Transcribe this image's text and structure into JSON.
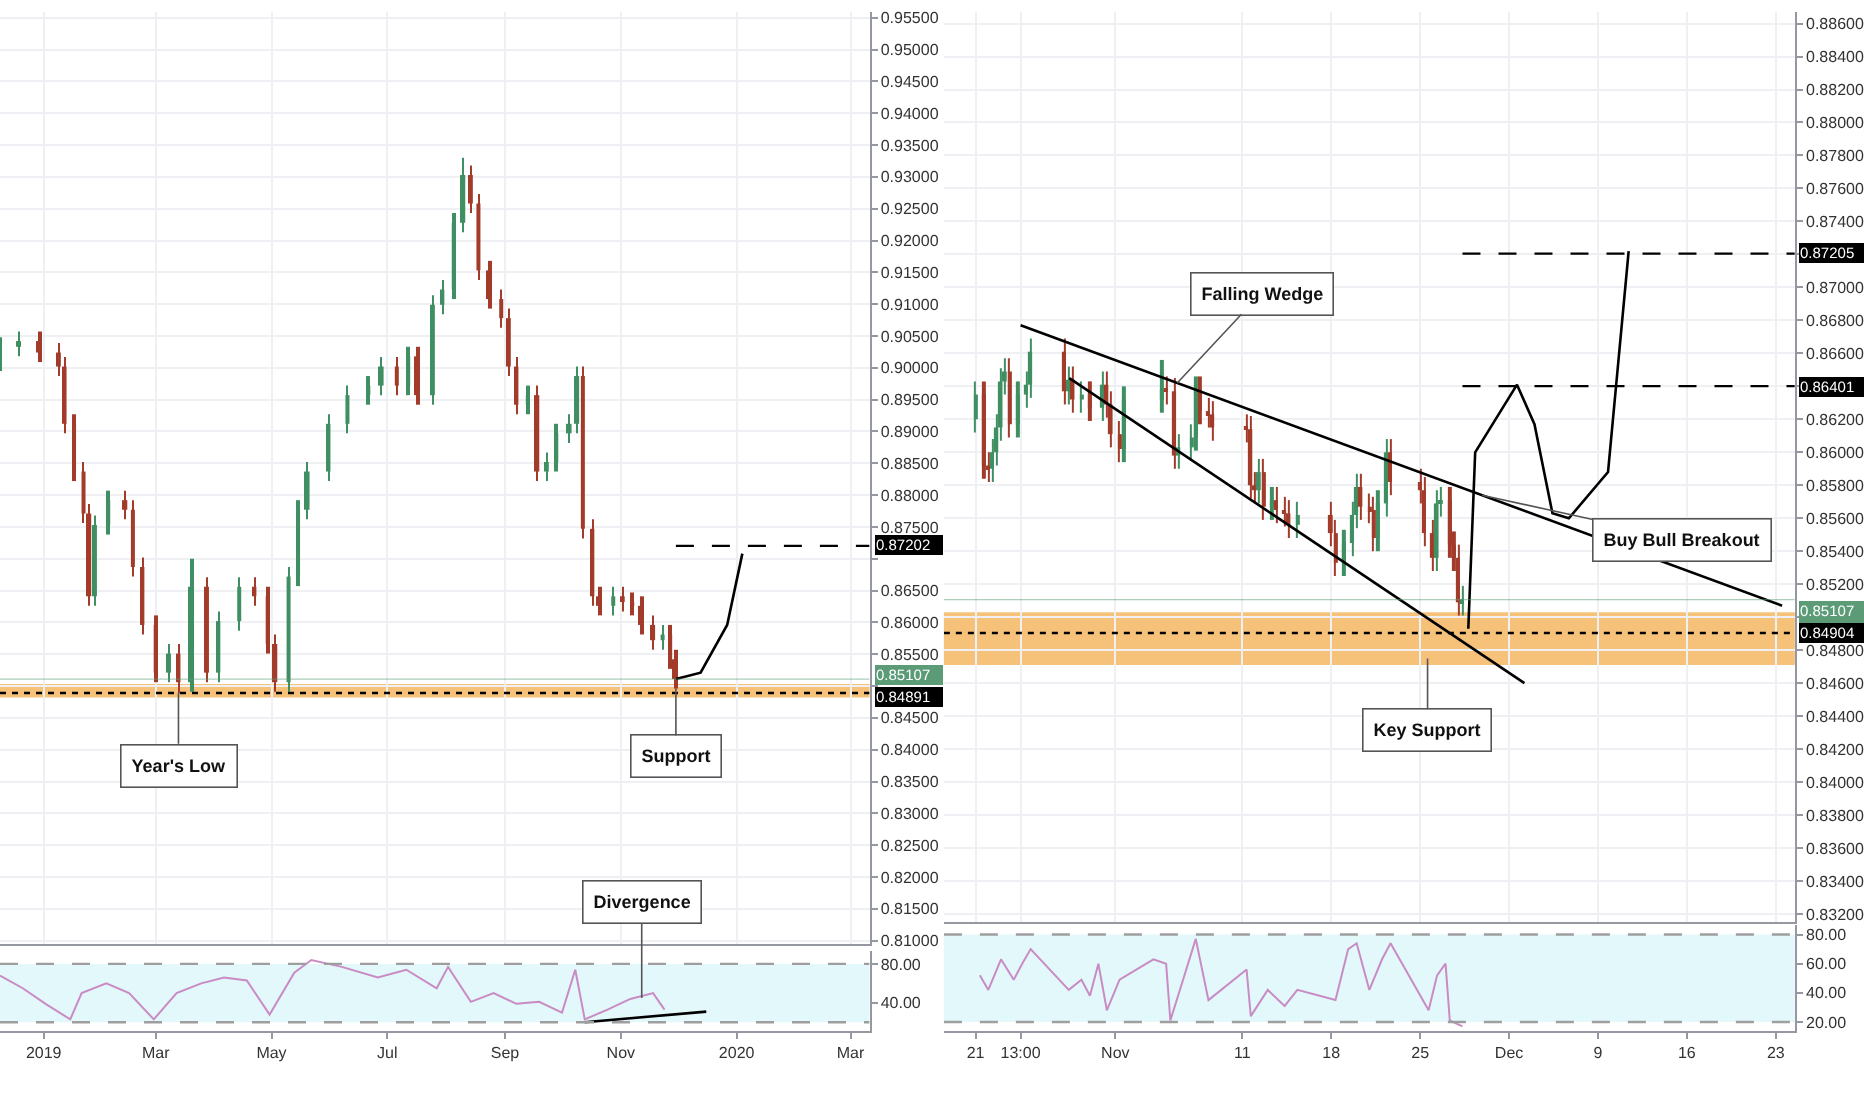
{
  "chart_data": [
    {
      "type": "candlestick",
      "x": [
        "2018-12-09",
        "2018-12-19",
        "2018-12-30",
        "2019-01-09",
        "2019-01-12",
        "2019-01-17",
        "2019-01-22",
        "2019-01-25",
        "2019-01-28",
        "2019-02-04",
        "2019-02-13",
        "2019-02-17",
        "2019-02-22",
        "2019-03-01",
        "2019-03-08",
        "2019-03-13",
        "2019-03-20",
        "2019-03-28",
        "2019-04-03",
        "2019-04-14",
        "2019-04-22",
        "2019-04-29",
        "2019-05-03",
        "2019-05-10",
        "2019-05-15",
        "2019-05-20",
        "2019-05-31",
        "2019-06-10",
        "2019-06-21",
        "2019-06-28",
        "2019-07-06",
        "2019-07-12",
        "2019-07-17",
        "2019-07-25",
        "2019-07-30",
        "2019-08-05",
        "2019-08-10",
        "2019-08-14",
        "2019-08-18",
        "2019-08-24",
        "2019-08-30",
        "2019-09-03",
        "2019-09-07",
        "2019-09-13",
        "2019-09-18",
        "2019-09-23",
        "2019-09-28",
        "2019-10-05",
        "2019-10-09",
        "2019-10-12",
        "2019-10-17",
        "2019-10-21",
        "2019-10-28",
        "2019-11-02",
        "2019-11-07",
        "2019-11-12",
        "2019-11-18",
        "2019-11-23",
        "2019-11-27",
        "2019-11-30"
      ],
      "ohlc": [
        [
          0.901,
          0.9048,
          0.8995,
          0.9033
        ],
        [
          0.9033,
          0.9057,
          0.9018,
          0.9042
        ],
        [
          0.9042,
          0.9057,
          0.9009,
          0.9024
        ],
        [
          0.9024,
          0.9039,
          0.8987,
          0.9002
        ],
        [
          0.9002,
          0.9017,
          0.8897,
          0.8912
        ],
        [
          0.8912,
          0.8927,
          0.8822,
          0.8837
        ],
        [
          0.8837,
          0.8852,
          0.8756,
          0.8771
        ],
        [
          0.8771,
          0.8786,
          0.8626,
          0.8641
        ],
        [
          0.8641,
          0.8768,
          0.8626,
          0.8753
        ],
        [
          0.8753,
          0.8807,
          0.8738,
          0.8792
        ],
        [
          0.8792,
          0.8807,
          0.8762,
          0.8777
        ],
        [
          0.8777,
          0.8792,
          0.8672,
          0.8687
        ],
        [
          0.8687,
          0.8702,
          0.8581,
          0.8596
        ],
        [
          0.8596,
          0.8611,
          0.8506,
          0.8521
        ],
        [
          0.8521,
          0.8566,
          0.8506,
          0.8551
        ],
        [
          0.8551,
          0.8566,
          0.8489,
          0.8506
        ],
        [
          0.8506,
          0.87,
          0.8491,
          0.8656
        ],
        [
          0.8656,
          0.8671,
          0.8506,
          0.8521
        ],
        [
          0.8521,
          0.8617,
          0.8506,
          0.8602
        ],
        [
          0.8602,
          0.8671,
          0.8587,
          0.8656
        ],
        [
          0.8656,
          0.8671,
          0.8626,
          0.8641
        ],
        [
          0.8641,
          0.8656,
          0.8551,
          0.8566
        ],
        [
          0.8566,
          0.8581,
          0.8491,
          0.8506
        ],
        [
          0.8506,
          0.8687,
          0.8491,
          0.8672
        ],
        [
          0.8672,
          0.8792,
          0.8657,
          0.8777
        ],
        [
          0.8777,
          0.8852,
          0.8762,
          0.8837
        ],
        [
          0.8837,
          0.8927,
          0.8822,
          0.8912
        ],
        [
          0.8912,
          0.8972,
          0.8897,
          0.8957
        ],
        [
          0.8957,
          0.8987,
          0.8942,
          0.8972
        ],
        [
          0.8972,
          0.9017,
          0.8957,
          0.9002
        ],
        [
          0.9002,
          0.9017,
          0.8957,
          0.8972
        ],
        [
          0.8972,
          0.9033,
          0.8957,
          0.9018
        ],
        [
          0.9018,
          0.9033,
          0.8942,
          0.8957
        ],
        [
          0.8957,
          0.9114,
          0.8942,
          0.9099
        ],
        [
          0.9099,
          0.9138,
          0.9084,
          0.9123
        ],
        [
          0.9123,
          0.9243,
          0.9108,
          0.9228
        ],
        [
          0.9228,
          0.933,
          0.9213,
          0.9303
        ],
        [
          0.9303,
          0.9318,
          0.9243,
          0.9258
        ],
        [
          0.9258,
          0.9273,
          0.9138,
          0.9153
        ],
        [
          0.9153,
          0.9168,
          0.9093,
          0.9108
        ],
        [
          0.9108,
          0.9123,
          0.9063,
          0.9078
        ],
        [
          0.9078,
          0.9093,
          0.8987,
          0.9002
        ],
        [
          0.9002,
          0.9017,
          0.8927,
          0.8942
        ],
        [
          0.8942,
          0.8972,
          0.8927,
          0.8957
        ],
        [
          0.8957,
          0.8972,
          0.8822,
          0.8837
        ],
        [
          0.8837,
          0.8867,
          0.8822,
          0.8852
        ],
        [
          0.8852,
          0.8912,
          0.8837,
          0.8897
        ],
        [
          0.8897,
          0.8927,
          0.8882,
          0.8912
        ],
        [
          0.8912,
          0.9002,
          0.8897,
          0.8987
        ],
        [
          0.8987,
          0.9002,
          0.8732,
          0.8747
        ],
        [
          0.8747,
          0.8762,
          0.8626,
          0.8641
        ],
        [
          0.8641,
          0.8656,
          0.8611,
          0.8626
        ],
        [
          0.8626,
          0.8656,
          0.8611,
          0.8641
        ],
        [
          0.8641,
          0.8656,
          0.8617,
          0.8632
        ],
        [
          0.8632,
          0.8647,
          0.8611,
          0.8626
        ],
        [
          0.8626,
          0.8641,
          0.8581,
          0.8596
        ],
        [
          0.8596,
          0.8611,
          0.8557,
          0.8572
        ],
        [
          0.8572,
          0.8596,
          0.8557,
          0.8581
        ],
        [
          0.8581,
          0.8596,
          0.8527,
          0.8542
        ],
        [
          0.8542,
          0.8557,
          0.8496,
          0.8511
        ]
      ],
      "colors": [
        "#3f8f63",
        "#3f8f63",
        "#a33b2b",
        "#a33b2b",
        "#a33b2b",
        "#a33b2b",
        "#a33b2b",
        "#a33b2b",
        "#3f8f63",
        "#3f8f63",
        "#a33b2b",
        "#a33b2b",
        "#a33b2b",
        "#a33b2b",
        "#3f8f63",
        "#a33b2b",
        "#3f8f63",
        "#a33b2b",
        "#3f8f63",
        "#3f8f63",
        "#a33b2b",
        "#a33b2b",
        "#a33b2b",
        "#3f8f63",
        "#3f8f63",
        "#3f8f63",
        "#3f8f63",
        "#3f8f63",
        "#3f8f63",
        "#3f8f63",
        "#a33b2b",
        "#3f8f63",
        "#a33b2b",
        "#3f8f63",
        "#3f8f63",
        "#3f8f63",
        "#3f8f63",
        "#a33b2b",
        "#a33b2b",
        "#a33b2b",
        "#a33b2b",
        "#a33b2b",
        "#a33b2b",
        "#3f8f63",
        "#a33b2b",
        "#3f8f63",
        "#3f8f63",
        "#3f8f63",
        "#3f8f63",
        "#a33b2b",
        "#a33b2b",
        "#a33b2b",
        "#3f8f63",
        "#a33b2b",
        "#a33b2b",
        "#a33b2b",
        "#a33b2b",
        "#3f8f63",
        "#a33b2b",
        "#a33b2b"
      ],
      "series": [
        {
          "type": "line",
          "color": "#000000",
          "x": [
            "2019-11-30",
            "2019-12-13",
            "2019-12-27",
            "2020-01-04"
          ],
          "values": [
            0.8511,
            0.8521,
            0.8596,
            0.8708
          ]
        }
      ],
      "xlim": [
        "2018-12-09",
        "2020-03-11"
      ],
      "xticks": [
        {
          "value": "2019-01-01",
          "label": null
        },
        {
          "value": "2019-03-01",
          "label": null
        },
        {
          "value": "2019-05-01",
          "label": null
        },
        {
          "value": "2019-07-01",
          "label": null
        },
        {
          "value": "2019-09-01",
          "label": null
        },
        {
          "value": "2019-11-01",
          "label": null
        },
        {
          "value": "2020-01-01",
          "label": null
        },
        {
          "value": "2020-03-01",
          "label": null
        }
      ],
      "ylim": [
        0.8094,
        0.9559
      ],
      "yticks": [
        {
          "value": 0.81,
          "label": "0.81000"
        },
        {
          "value": 0.815,
          "label": "0.81500"
        },
        {
          "value": 0.82,
          "label": "0.82000"
        },
        {
          "value": 0.825,
          "label": "0.82500"
        },
        {
          "value": 0.83,
          "label": "0.83000"
        },
        {
          "value": 0.835,
          "label": "0.83500"
        },
        {
          "value": 0.84,
          "label": "0.84000"
        },
        {
          "value": 0.845,
          "label": "0.84500"
        },
        {
          "value": 0.85,
          "label": null
        },
        {
          "value": 0.855,
          "label": "0.85500"
        },
        {
          "value": 0.86,
          "label": "0.86000"
        },
        {
          "value": 0.865,
          "label": "0.86500"
        },
        {
          "value": 0.87,
          "label": null
        },
        {
          "value": 0.875,
          "label": "0.87500"
        },
        {
          "value": 0.88,
          "label": "0.88000"
        },
        {
          "value": 0.885,
          "label": "0.88500"
        },
        {
          "value": 0.89,
          "label": "0.89000"
        },
        {
          "value": 0.895,
          "label": "0.89500"
        },
        {
          "value": 0.9,
          "label": "0.90000"
        },
        {
          "value": 0.905,
          "label": "0.90500"
        },
        {
          "value": 0.91,
          "label": "0.91000"
        },
        {
          "value": 0.915,
          "label": "0.91500"
        },
        {
          "value": 0.92,
          "label": "0.92000"
        },
        {
          "value": 0.925,
          "label": "0.92500"
        },
        {
          "value": 0.93,
          "label": "0.93000"
        },
        {
          "value": 0.935,
          "label": "0.93500"
        },
        {
          "value": 0.94,
          "label": "0.94000"
        },
        {
          "value": 0.945,
          "label": "0.94500"
        },
        {
          "value": 0.95,
          "label": "0.95000"
        },
        {
          "value": 0.955,
          "label": "0.95500"
        }
      ],
      "tick_labels": "y",
      "grid": true,
      "bands": [
        {
          "axis": "y",
          "from": 0.8482,
          "to": 0.8503,
          "color": "#f6c27a"
        }
      ],
      "ref_lines": [
        {
          "axis": "y",
          "value": 0.87202,
          "label": "0.87202",
          "color": "#000000",
          "line_style": "dashed"
        },
        {
          "axis": "y",
          "value": 0.85107,
          "label": "0.85107",
          "color": "#5b9c77",
          "line_style": "solid"
        },
        {
          "axis": "y",
          "value": 0.84891,
          "label": "0.84891",
          "color": "#000000",
          "line_style": "dotted"
        }
      ],
      "annotations": [
        {
          "text": "Year's Low",
          "x": "2019-03-13",
          "y": 0.8489
        },
        {
          "text": "Support",
          "x": "2019-11-30",
          "y": 0.8496
        }
      ]
    },
    {
      "type": "line",
      "x": [
        "2018-12-09",
        "2018-12-21",
        "2019-01-02",
        "2019-01-15",
        "2019-01-21",
        "2019-02-03",
        "2019-02-15",
        "2019-02-28",
        "2019-03-12",
        "2019-03-25",
        "2019-04-06",
        "2019-04-18",
        "2019-04-30",
        "2019-05-13",
        "2019-05-22",
        "2019-06-07",
        "2019-06-26",
        "2019-07-11",
        "2019-07-27",
        "2019-08-02",
        "2019-08-14",
        "2019-08-26",
        "2019-09-07",
        "2019-09-19",
        "2019-10-01",
        "2019-10-08",
        "2019-10-13",
        "2019-10-25",
        "2019-11-06",
        "2019-11-18",
        "2019-11-24"
      ],
      "series": [
        {
          "color": "#c98bc4",
          "values": [
            68,
            55,
            39,
            23,
            50,
            60,
            50,
            23,
            50,
            60,
            66,
            63,
            28,
            71,
            84,
            77,
            66,
            74,
            55,
            77,
            41,
            50,
            39,
            41,
            30,
            74,
            23,
            33,
            44,
            50,
            33
          ]
        },
        {
          "color": "#000000",
          "x": [
            "2019-10-13",
            "2019-12-16"
          ],
          "values": [
            20,
            31
          ]
        }
      ],
      "xlim": [
        "2018-12-09",
        "2020-03-11"
      ],
      "xticks": [
        {
          "value": "2019-01-01",
          "label": "2019"
        },
        {
          "value": "2019-03-01",
          "label": "Mar"
        },
        {
          "value": "2019-05-01",
          "label": "May"
        },
        {
          "value": "2019-07-01",
          "label": "Jul"
        },
        {
          "value": "2019-09-01",
          "label": "Sep"
        },
        {
          "value": "2019-11-01",
          "label": "Nov"
        },
        {
          "value": "2020-01-01",
          "label": "2020"
        },
        {
          "value": "2020-03-01",
          "label": "Mar"
        }
      ],
      "ylim": [
        11,
        93.5
      ],
      "yticks": [
        {
          "value": 40,
          "label": "40.00"
        },
        {
          "value": 80,
          "label": "80.00"
        }
      ],
      "bands": [
        {
          "axis": "y",
          "from": 20,
          "to": 80,
          "color": "#e3f8fb"
        }
      ],
      "ref_lines": [
        {
          "axis": "y",
          "value": 80,
          "color": "#9e9e9e",
          "line_style": "dashed"
        },
        {
          "axis": "y",
          "value": 20,
          "color": "#9e9e9e",
          "line_style": "dashed"
        }
      ],
      "annotations": [
        {
          "text": "Divergence",
          "x": "2019-11-12",
          "y": 45
        }
      ]
    },
    {
      "type": "candlestick",
      "x": [
        "2019-10-21T00:00",
        "2019-10-21T16:00",
        "2019-10-22T00:00",
        "2019-10-22T08:00",
        "2019-10-22T16:00",
        "2019-10-23T00:00",
        "2019-10-23T08:00",
        "2019-10-23T16:00",
        "2019-10-24T08:00",
        "2019-10-25T00:00",
        "2019-10-25T08:00",
        "2019-10-28T00:00",
        "2019-10-28T08:00",
        "2019-10-28T16:00",
        "2019-10-29T08:00",
        "2019-10-30T00:00",
        "2019-10-31T00:00",
        "2019-10-31T08:00",
        "2019-10-31T16:00",
        "2019-11-01T08:00",
        "2019-11-01T16:00",
        "2019-11-04T16:00",
        "2019-11-05T00:00",
        "2019-11-05T16:00",
        "2019-11-06T00:00",
        "2019-11-07T00:00",
        "2019-11-07T08:00",
        "2019-11-07T16:00",
        "2019-11-08T08:00",
        "2019-11-08T16:00",
        "2019-11-11T08:00",
        "2019-11-11T16:00",
        "2019-11-12T00:00",
        "2019-11-12T08:00",
        "2019-11-12T16:00",
        "2019-11-13T08:00",
        "2019-11-13T16:00",
        "2019-11-14T08:00",
        "2019-11-14T16:00",
        "2019-11-15T08:00",
        "2019-11-18T00:00",
        "2019-11-18T08:00",
        "2019-11-19T00:00",
        "2019-11-19T16:00",
        "2019-11-20T00:00",
        "2019-11-20T08:00",
        "2019-11-21T00:00",
        "2019-11-21T08:00",
        "2019-11-21T16:00",
        "2019-11-22T08:00",
        "2019-11-22T16:00",
        "2019-11-25T00:00",
        "2019-11-25T08:00",
        "2019-11-26T00:00",
        "2019-11-26T08:00",
        "2019-11-26T16:00",
        "2019-11-27T08:00",
        "2019-11-27T16:00",
        "2019-11-28T00:00",
        "2019-11-28T08:00"
      ],
      "ohlc": [
        [
          0.862,
          0.8643,
          0.8612,
          0.8635
        ],
        [
          0.8635,
          0.8643,
          0.8584,
          0.8592
        ],
        [
          0.8592,
          0.86,
          0.8582,
          0.859
        ],
        [
          0.859,
          0.8608,
          0.8582,
          0.86
        ],
        [
          0.86,
          0.8623,
          0.8592,
          0.8615
        ],
        [
          0.8615,
          0.8651,
          0.8607,
          0.8643
        ],
        [
          0.8643,
          0.8657,
          0.8635,
          0.8649
        ],
        [
          0.8649,
          0.8657,
          0.8609,
          0.8617
        ],
        [
          0.8617,
          0.8643,
          0.8609,
          0.8635
        ],
        [
          0.8635,
          0.8649,
          0.8627,
          0.8641
        ],
        [
          0.8641,
          0.8669,
          0.8633,
          0.8661
        ],
        [
          0.8661,
          0.8669,
          0.8629,
          0.8637
        ],
        [
          0.8637,
          0.8652,
          0.8629,
          0.8644
        ],
        [
          0.8644,
          0.8652,
          0.8624,
          0.8632
        ],
        [
          0.8632,
          0.8643,
          0.8624,
          0.8635
        ],
        [
          0.8635,
          0.8643,
          0.8619,
          0.8627
        ],
        [
          0.8627,
          0.8649,
          0.8619,
          0.8641
        ],
        [
          0.8641,
          0.8649,
          0.8621,
          0.8629
        ],
        [
          0.8629,
          0.8637,
          0.8603,
          0.8611
        ],
        [
          0.8611,
          0.8619,
          0.8594,
          0.8602
        ],
        [
          0.8602,
          0.864,
          0.8594,
          0.8632
        ],
        [
          0.8632,
          0.8656,
          0.8624,
          0.8638
        ],
        [
          0.8638,
          0.8646,
          0.8629,
          0.8637
        ],
        [
          0.8637,
          0.8645,
          0.859,
          0.8598
        ],
        [
          0.8598,
          0.8611,
          0.859,
          0.8603
        ],
        [
          0.8603,
          0.8617,
          0.8595,
          0.8609
        ],
        [
          0.8609,
          0.8646,
          0.8601,
          0.8638
        ],
        [
          0.8638,
          0.8646,
          0.8617,
          0.8625
        ],
        [
          0.8625,
          0.8633,
          0.8615,
          0.8623
        ],
        [
          0.8623,
          0.8631,
          0.8607,
          0.8615
        ],
        [
          0.8615,
          0.8623,
          0.8606,
          0.8614
        ],
        [
          0.8614,
          0.8622,
          0.8572,
          0.858
        ],
        [
          0.858,
          0.8588,
          0.8569,
          0.8577
        ],
        [
          0.8577,
          0.8596,
          0.8569,
          0.8588
        ],
        [
          0.8588,
          0.8596,
          0.8559,
          0.8567
        ],
        [
          0.8567,
          0.8579,
          0.8559,
          0.8571
        ],
        [
          0.8571,
          0.8579,
          0.8557,
          0.8565
        ],
        [
          0.8565,
          0.8573,
          0.8555,
          0.8563
        ],
        [
          0.8563,
          0.8571,
          0.8548,
          0.8556
        ],
        [
          0.8556,
          0.857,
          0.8548,
          0.8562
        ],
        [
          0.8562,
          0.857,
          0.8543,
          0.8551
        ],
        [
          0.8551,
          0.8559,
          0.8525,
          0.8533
        ],
        [
          0.8533,
          0.8553,
          0.8525,
          0.8545
        ],
        [
          0.8545,
          0.857,
          0.8537,
          0.8562
        ],
        [
          0.8562,
          0.8587,
          0.8554,
          0.8579
        ],
        [
          0.8579,
          0.8587,
          0.8559,
          0.8567
        ],
        [
          0.8567,
          0.8575,
          0.8557,
          0.8565
        ],
        [
          0.8565,
          0.8573,
          0.854,
          0.8548
        ],
        [
          0.8548,
          0.8577,
          0.854,
          0.8569
        ],
        [
          0.8569,
          0.8608,
          0.8561,
          0.86
        ],
        [
          0.86,
          0.8608,
          0.8574,
          0.8582
        ],
        [
          0.8582,
          0.859,
          0.8569,
          0.8577
        ],
        [
          0.8577,
          0.8585,
          0.8543,
          0.8551
        ],
        [
          0.8551,
          0.8559,
          0.8528,
          0.8536
        ],
        [
          0.8536,
          0.8577,
          0.8528,
          0.8569
        ],
        [
          0.8569,
          0.8579,
          0.8561,
          0.8571
        ],
        [
          0.8571,
          0.8579,
          0.8536,
          0.8544
        ],
        [
          0.8544,
          0.8552,
          0.8528,
          0.8536
        ],
        [
          0.8536,
          0.8544,
          0.8501,
          0.8509
        ],
        [
          0.8509,
          0.8519,
          0.8501,
          0.8511
        ]
      ],
      "colors": [
        "#3f8f63",
        "#a33b2b",
        "#a33b2b",
        "#3f8f63",
        "#3f8f63",
        "#3f8f63",
        "#3f8f63",
        "#a33b2b",
        "#3f8f63",
        "#3f8f63",
        "#3f8f63",
        "#a33b2b",
        "#3f8f63",
        "#a33b2b",
        "#3f8f63",
        "#a33b2b",
        "#3f8f63",
        "#a33b2b",
        "#a33b2b",
        "#a33b2b",
        "#3f8f63",
        "#3f8f63",
        "#a33b2b",
        "#a33b2b",
        "#3f8f63",
        "#3f8f63",
        "#3f8f63",
        "#a33b2b",
        "#a33b2b",
        "#a33b2b",
        "#a33b2b",
        "#a33b2b",
        "#a33b2b",
        "#3f8f63",
        "#a33b2b",
        "#3f8f63",
        "#a33b2b",
        "#a33b2b",
        "#a33b2b",
        "#3f8f63",
        "#a33b2b",
        "#a33b2b",
        "#3f8f63",
        "#3f8f63",
        "#3f8f63",
        "#a33b2b",
        "#a33b2b",
        "#a33b2b",
        "#3f8f63",
        "#3f8f63",
        "#a33b2b",
        "#a33b2b",
        "#a33b2b",
        "#a33b2b",
        "#3f8f63",
        "#3f8f63",
        "#a33b2b",
        "#a33b2b",
        "#a33b2b",
        "#3f8f63"
      ],
      "series": [
        {
          "type": "line",
          "color": "#000000",
          "x": [
            "2019-10-24T13:00",
            "2019-12-23T12:00"
          ],
          "values": [
            0.8677,
            0.8507
          ]
        },
        {
          "type": "line",
          "color": "#000000",
          "x": [
            "2019-10-28T09:00",
            "2019-12-03T05:00"
          ],
          "values": [
            0.8645,
            0.846
          ]
        },
        {
          "type": "line",
          "color": "#000000",
          "x": [
            "2019-11-28T19:00",
            "2019-11-29T08:00",
            "2019-12-02T15:00",
            "2019-12-04T00:00",
            "2019-12-05T10:00",
            "2019-12-06T17:00",
            "2019-12-09T19:00",
            "2019-12-11T10:00"
          ],
          "values": [
            0.8493,
            0.86,
            0.8641,
            0.8617,
            0.8563,
            0.856,
            0.8588,
            0.8722
          ]
        }
      ],
      "xlim": [
        "2019-10-18T12:00",
        "2019-12-24T12:00"
      ],
      "xticks": [
        {
          "value": "2019-10-21",
          "label": null
        },
        {
          "value": "2019-10-24T13:00",
          "label": null
        },
        {
          "value": "2019-11-01",
          "label": null
        },
        {
          "value": "2019-11-11",
          "label": null
        },
        {
          "value": "2019-11-18",
          "label": null
        },
        {
          "value": "2019-11-25",
          "label": null
        },
        {
          "value": "2019-12-02",
          "label": null
        },
        {
          "value": "2019-12-09",
          "label": null
        },
        {
          "value": "2019-12-16",
          "label": null
        },
        {
          "value": "2019-12-23",
          "label": null
        }
      ],
      "ylim": [
        0.8315,
        0.8867
      ],
      "yticks": [
        {
          "value": 0.832,
          "label": "0.83200"
        },
        {
          "value": 0.834,
          "label": "0.83400"
        },
        {
          "value": 0.836,
          "label": "0.83600"
        },
        {
          "value": 0.838,
          "label": "0.83800"
        },
        {
          "value": 0.84,
          "label": "0.84000"
        },
        {
          "value": 0.842,
          "label": "0.84200"
        },
        {
          "value": 0.844,
          "label": "0.84400"
        },
        {
          "value": 0.846,
          "label": "0.84600"
        },
        {
          "value": 0.848,
          "label": "0.84800"
        },
        {
          "value": 0.85,
          "label": null
        },
        {
          "value": 0.852,
          "label": "0.85200"
        },
        {
          "value": 0.854,
          "label": "0.85400"
        },
        {
          "value": 0.856,
          "label": "0.85600"
        },
        {
          "value": 0.858,
          "label": "0.85800"
        },
        {
          "value": 0.86,
          "label": "0.86000"
        },
        {
          "value": 0.862,
          "label": "0.86200"
        },
        {
          "value": 0.864,
          "label": null
        },
        {
          "value": 0.866,
          "label": "0.86600"
        },
        {
          "value": 0.868,
          "label": "0.86800"
        },
        {
          "value": 0.87,
          "label": "0.87000"
        },
        {
          "value": 0.872,
          "label": null
        },
        {
          "value": 0.874,
          "label": "0.87400"
        },
        {
          "value": 0.876,
          "label": "0.87600"
        },
        {
          "value": 0.878,
          "label": "0.87800"
        },
        {
          "value": 0.88,
          "label": "0.88000"
        },
        {
          "value": 0.882,
          "label": "0.88200"
        },
        {
          "value": 0.884,
          "label": "0.88400"
        },
        {
          "value": 0.886,
          "label": "0.88600"
        }
      ],
      "tick_labels": "y",
      "grid": true,
      "bands": [
        {
          "axis": "y",
          "from": 0.8471,
          "to": 0.8503,
          "color": "#f6c27a"
        }
      ],
      "ref_lines": [
        {
          "axis": "y",
          "value": 0.87205,
          "label": "0.87205",
          "color": "#000000",
          "line_style": "dashed"
        },
        {
          "axis": "y",
          "value": 0.86401,
          "label": "0.86401",
          "color": "#000000",
          "line_style": "dashed"
        },
        {
          "axis": "y",
          "value": 0.85107,
          "label": "0.85107\n50:05",
          "color": "#5b9c77",
          "line_style": "solid"
        },
        {
          "axis": "y",
          "value": 0.84904,
          "label": "0.84904",
          "color": "#000000",
          "line_style": "dotted"
        }
      ],
      "annotations": [
        {
          "text": "Falling Wedge",
          "x": "2019-11-05T21:00",
          "y": 0.8642
        },
        {
          "text": "Key Support",
          "x": "2019-11-25T14:00",
          "y": 0.8475
        },
        {
          "text": "Buy Bull Breakout",
          "x": "2019-11-29T21:00",
          "y": 0.8574
        }
      ]
    },
    {
      "type": "line",
      "x": [
        "2019-10-21T08:00",
        "2019-10-22T00:00",
        "2019-10-23T00:00",
        "2019-10-24T00:00",
        "2019-10-24T16:00",
        "2019-10-25T08:00",
        "2019-10-28T08:00",
        "2019-10-29T08:00",
        "2019-10-30T00:00",
        "2019-10-30T16:00",
        "2019-10-31T08:00",
        "2019-11-01T08:00",
        "2019-11-04T00:00",
        "2019-11-05T00:00",
        "2019-11-05T08:00",
        "2019-11-06T08:00",
        "2019-11-07T08:00",
        "2019-11-08T08:00",
        "2019-11-11T08:00",
        "2019-11-11T16:00",
        "2019-11-13T00:00",
        "2019-11-14T08:00",
        "2019-11-15T08:00",
        "2019-11-18T08:00",
        "2019-11-19T08:00",
        "2019-11-20T00:00",
        "2019-11-21T00:00",
        "2019-11-22T00:00",
        "2019-11-22T16:00",
        "2019-11-25T16:00",
        "2019-11-26T08:00",
        "2019-11-27T00:00",
        "2019-11-27T08:00",
        "2019-11-28T08:00"
      ],
      "series": [
        {
          "color": "#c98bc4",
          "values": [
            52,
            42,
            63,
            49,
            60,
            70,
            42,
            49,
            38,
            60,
            28,
            49,
            63,
            60,
            21,
            49,
            77,
            35,
            56,
            24,
            42,
            31,
            42,
            35,
            70,
            74,
            42,
            63,
            74,
            28,
            52,
            60,
            21,
            17
          ]
        }
      ],
      "xlim": [
        "2019-10-18T12:00",
        "2019-12-24T12:00"
      ],
      "xticks": [
        {
          "value": "2019-10-21",
          "label": "21"
        },
        {
          "value": "2019-10-24T13:00",
          "label": "13:00"
        },
        {
          "value": "2019-11-01",
          "label": "Nov"
        },
        {
          "value": "2019-11-11",
          "label": "11"
        },
        {
          "value": "2019-11-18",
          "label": "18"
        },
        {
          "value": "2019-11-25",
          "label": "25"
        },
        {
          "value": "2019-12-02",
          "label": "Dec"
        },
        {
          "value": "2019-12-09",
          "label": "9"
        },
        {
          "value": "2019-12-16",
          "label": "16"
        },
        {
          "value": "2019-12-23",
          "label": "23"
        }
      ],
      "ylim": [
        13.75,
        86.25
      ],
      "yticks": [
        {
          "value": 20,
          "label": "20.00"
        },
        {
          "value": 40,
          "label": "40.00"
        },
        {
          "value": 60,
          "label": "60.00"
        },
        {
          "value": 80,
          "label": "80.00"
        }
      ],
      "bands": [
        {
          "axis": "y",
          "from": 20,
          "to": 80,
          "color": "#e3f8fb"
        }
      ],
      "ref_lines": [
        {
          "axis": "y",
          "value": 80,
          "color": "#9e9e9e",
          "line_style": "dashed"
        },
        {
          "axis": "y",
          "value": 20,
          "color": "#9e9e9e",
          "line_style": "dashed"
        }
      ]
    }
  ]
}
